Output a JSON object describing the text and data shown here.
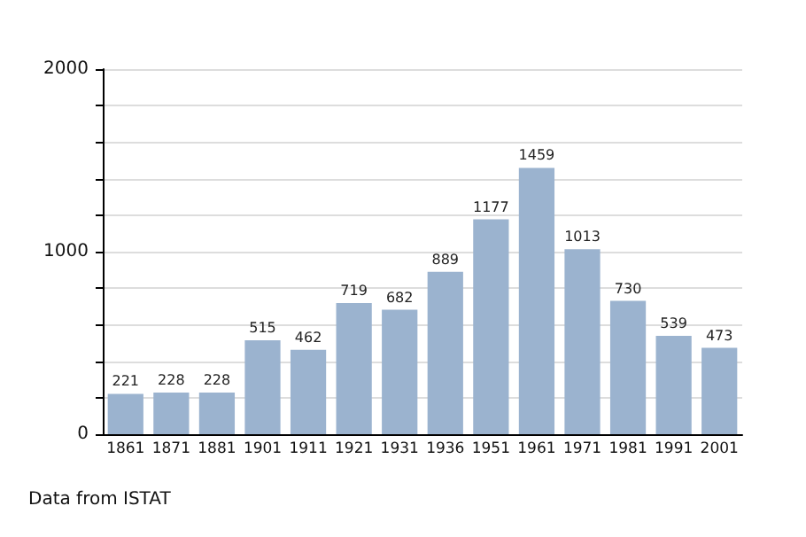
{
  "chart_data": {
    "type": "bar",
    "categories": [
      "1861",
      "1871",
      "1881",
      "1901",
      "1911",
      "1921",
      "1931",
      "1936",
      "1951",
      "1961",
      "1971",
      "1981",
      "1991",
      "2001"
    ],
    "values": [
      221,
      228,
      228,
      515,
      462,
      719,
      682,
      889,
      1177,
      1459,
      1013,
      730,
      539,
      473
    ],
    "color": "#9bb3cf",
    "data_labels": true,
    "ylim": [
      0,
      2000
    ],
    "yticks": [
      0,
      {
        "value": 200,
        "label": null
      },
      {
        "value": 400,
        "label": null
      },
      {
        "value": 600,
        "label": null
      },
      {
        "value": 800,
        "label": null
      },
      1000,
      {
        "value": 1200,
        "label": null
      },
      {
        "value": 1400,
        "label": null
      },
      {
        "value": 1600,
        "label": null
      },
      {
        "value": 1800,
        "label": null
      },
      2000
    ],
    "grid": "y",
    "annotations": [
      "Data from ISTAT"
    ]
  }
}
